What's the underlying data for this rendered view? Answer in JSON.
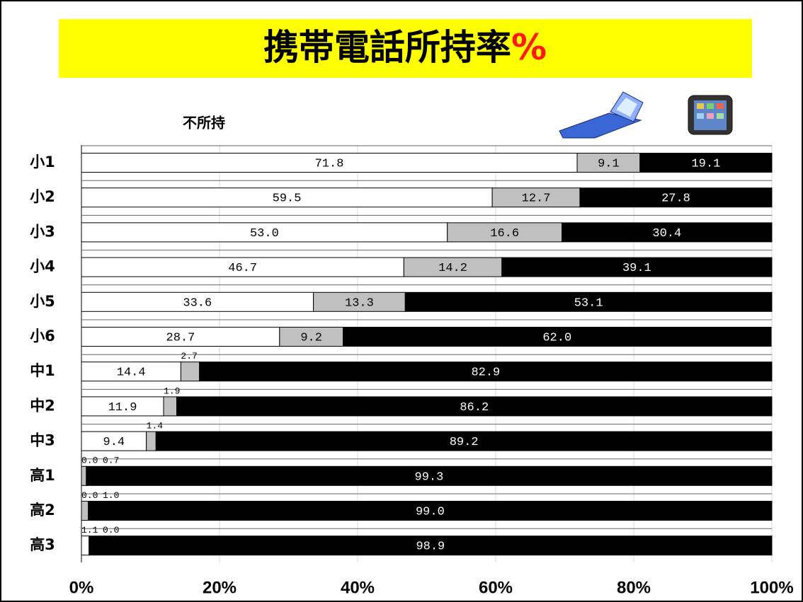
{
  "chart_data": {
    "type": "stacked-bar-horizontal",
    "title": "携帯電話所持率%",
    "categories": [
      "小1",
      "小2",
      "小3",
      "小4",
      "小5",
      "小6",
      "中1",
      "中2",
      "中3",
      "高1",
      "高2",
      "高3"
    ],
    "series": [
      {
        "name": "不所持",
        "color": "#ffffff",
        "values": [
          71.8,
          59.5,
          53.0,
          46.7,
          33.6,
          28.7,
          14.4,
          11.9,
          9.4,
          0.0,
          0.0,
          1.1
        ],
        "value_labels": [
          "71.8",
          "59.5",
          "53.0",
          "46.7",
          "33.6",
          "28.7",
          "14.4",
          "11.9",
          "9.4",
          "0.0",
          "0.0",
          "1.1"
        ]
      },
      {
        "color": "#c0c0c0",
        "values": [
          9.1,
          12.7,
          16.6,
          14.2,
          13.3,
          9.2,
          2.7,
          1.9,
          1.4,
          0.7,
          1.0,
          0.0
        ],
        "value_labels": [
          "9.1",
          "12.7",
          "16.6",
          "14.2",
          "13.3",
          "9.2",
          "2.7",
          "1.9",
          "1.4",
          "0.7",
          "1.0",
          "0.0"
        ]
      },
      {
        "color": "#000000",
        "values": [
          19.1,
          27.8,
          30.4,
          39.1,
          53.1,
          62.0,
          82.9,
          86.2,
          89.2,
          99.3,
          99.0,
          98.9
        ],
        "value_labels": [
          "19.1",
          "27.8",
          "30.4",
          "39.1",
          "53.1",
          "62.0",
          "82.9",
          "86.2",
          "89.2",
          "99.3",
          "99.0",
          "98.9"
        ]
      }
    ],
    "xlim": [
      0,
      100
    ],
    "xticks": [
      {
        "value": 0,
        "label": "0%"
      },
      {
        "value": 20,
        "label": "20%"
      },
      {
        "value": 40,
        "label": "40%"
      },
      {
        "value": 60,
        "label": "60%"
      },
      {
        "value": 80,
        "label": "80%"
      },
      {
        "value": 100,
        "label": "100%"
      }
    ],
    "grid": true
  }
}
